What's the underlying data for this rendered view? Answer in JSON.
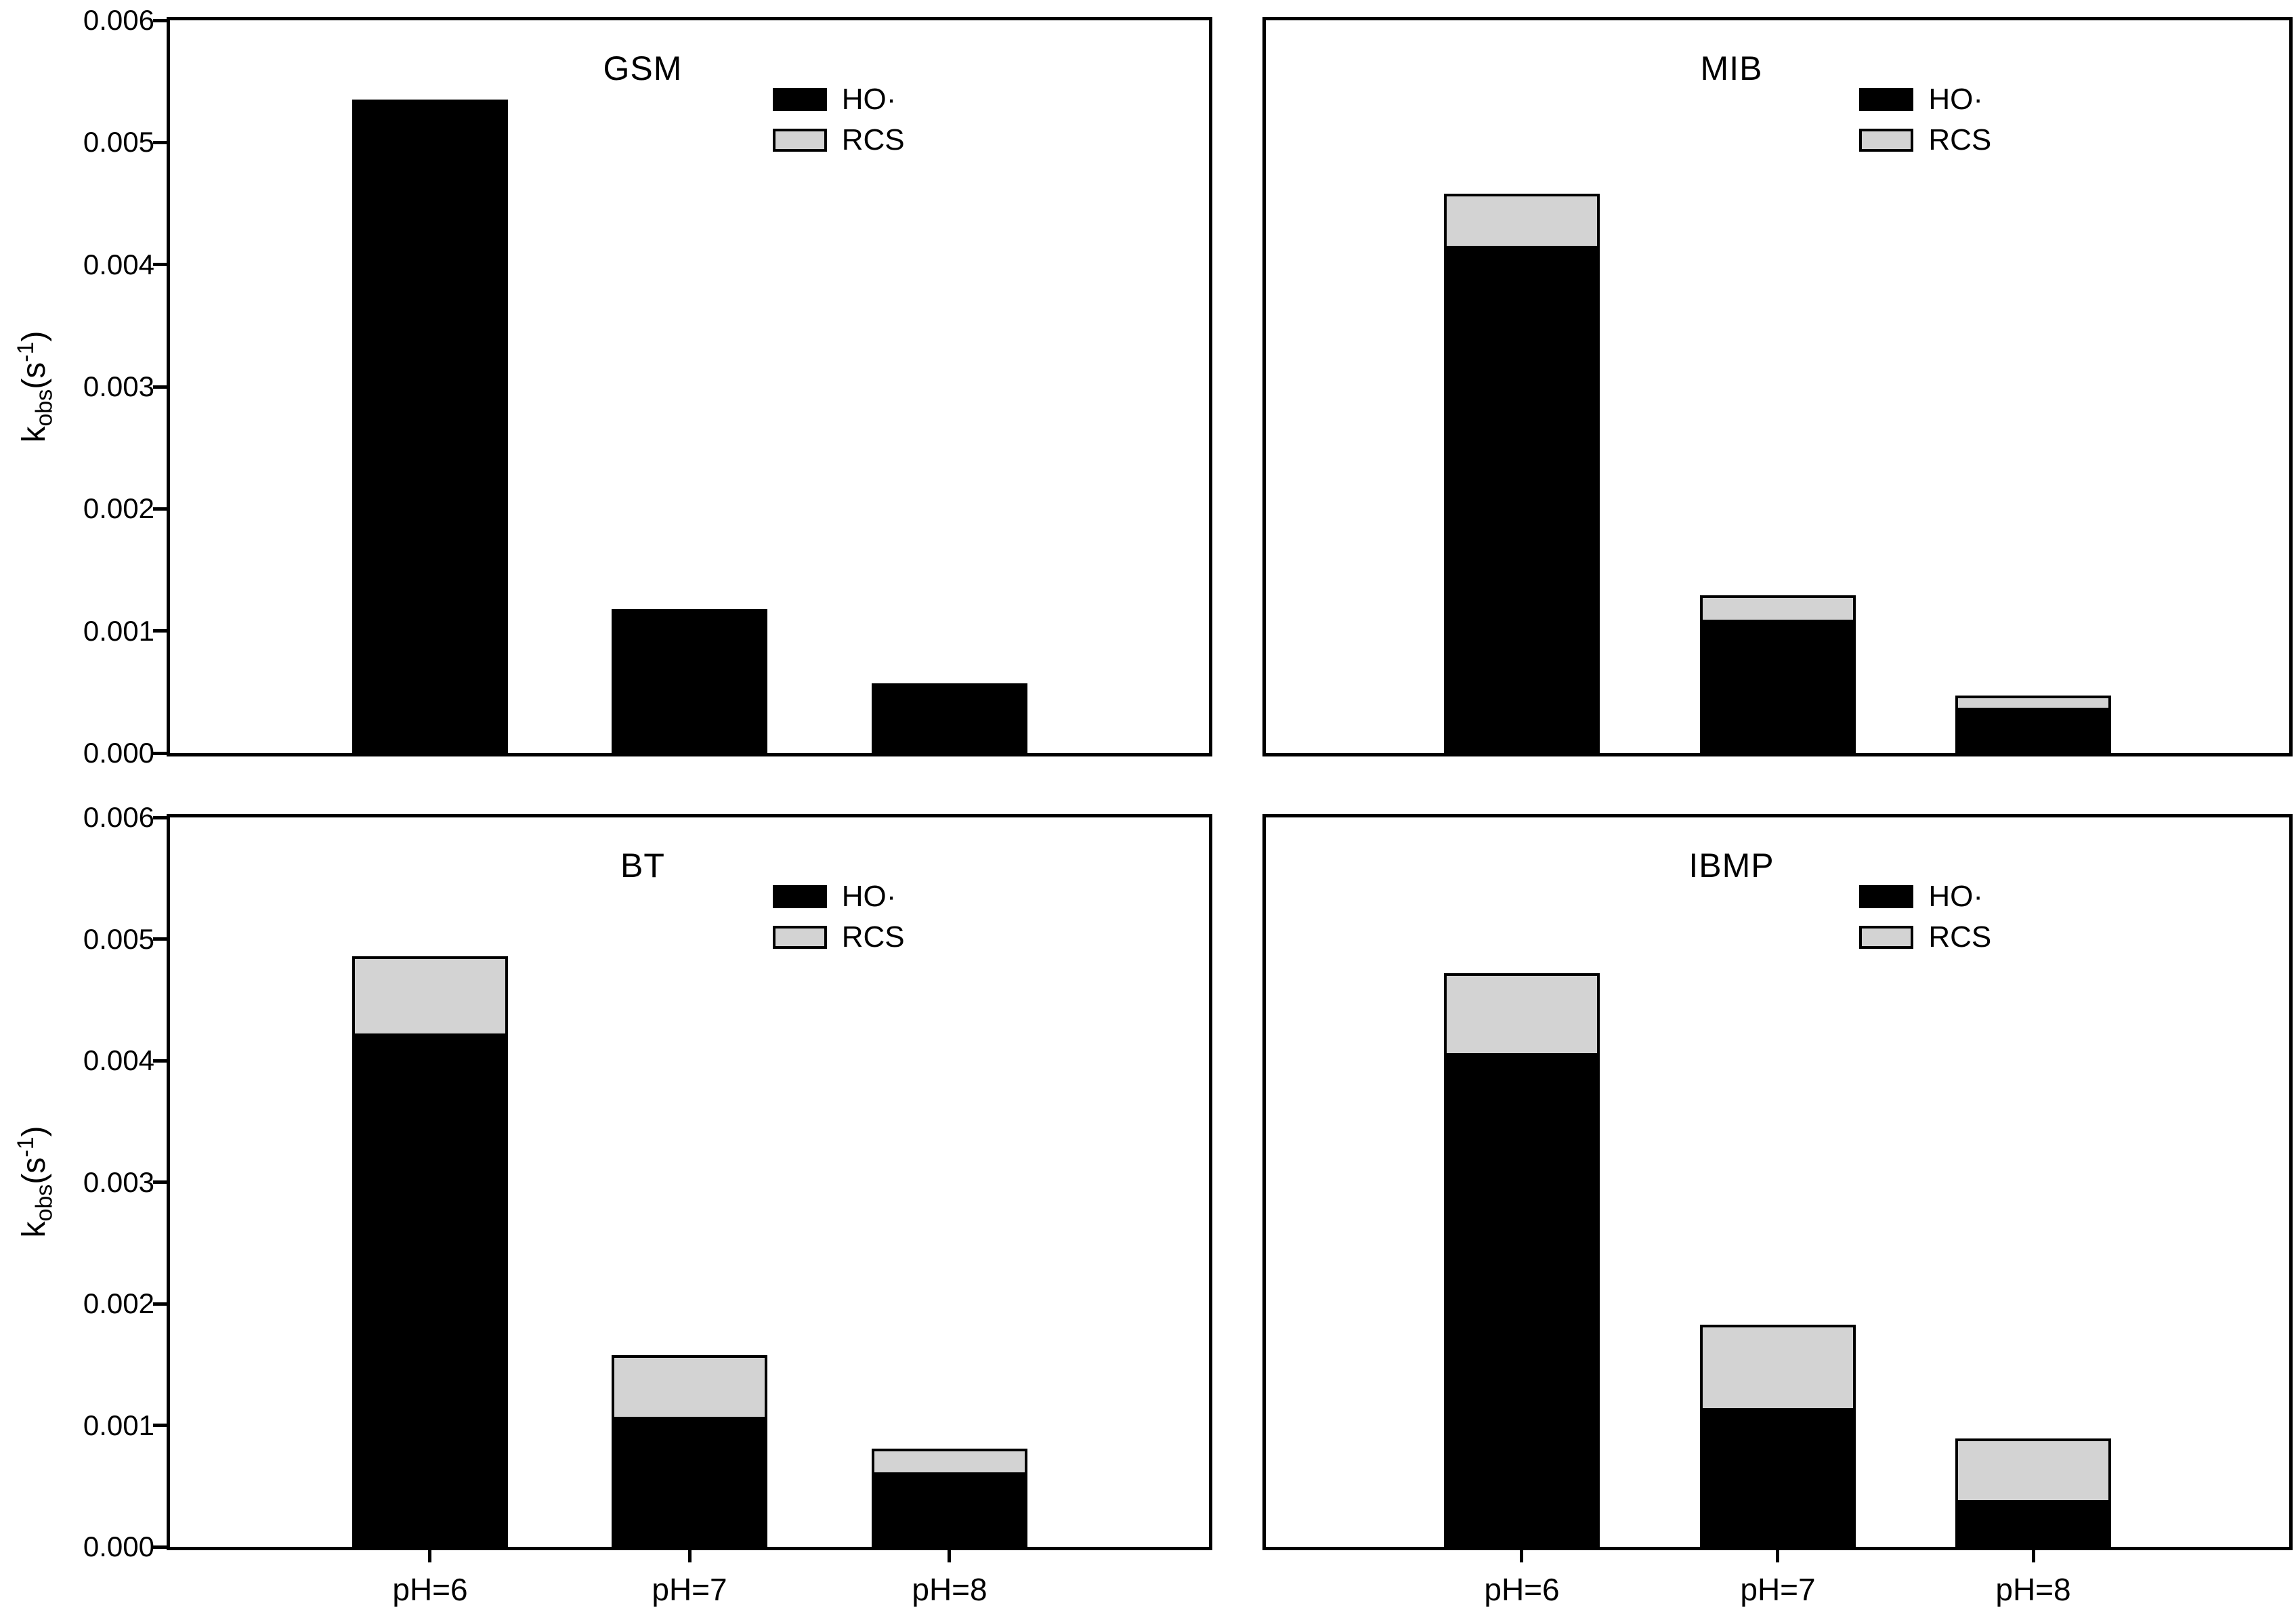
{
  "figure": {
    "background": "#ffffff",
    "ylabel": {
      "base": "k",
      "sub": "obs",
      "mid": "(s",
      "sup": "-1",
      "end": ")"
    },
    "legend": {
      "ho_label": "HO·",
      "rcs_label": "RCS"
    },
    "colors": {
      "ho": "#000000",
      "rcs": "#d3d3d3",
      "axis": "#000000"
    },
    "yticks": [
      "0.000",
      "0.001",
      "0.002",
      "0.003",
      "0.004",
      "0.005",
      "0.006"
    ]
  },
  "chart_data": [
    {
      "type": "bar",
      "stacked": true,
      "title": "GSM",
      "position": "top-left",
      "categories": [
        "pH=6",
        "pH=7",
        "pH=8"
      ],
      "series": [
        {
          "name": "HO·",
          "color": "#000000",
          "values": [
            0.00535,
            0.00118,
            0.00057
          ]
        },
        {
          "name": "RCS",
          "color": "#d3d3d3",
          "values": [
            0.0,
            0.0,
            0.0
          ]
        }
      ],
      "totals": [
        0.00535,
        0.00118,
        0.00057
      ],
      "xlabel": "",
      "ylabel": "k_obs(s^-1)",
      "ylim": [
        0,
        0.006
      ],
      "grid": false,
      "legend_position": "upper-right-inside",
      "show_ytick_labels": true,
      "show_xtick_labels": false
    },
    {
      "type": "bar",
      "stacked": true,
      "title": "MIB",
      "position": "top-right",
      "categories": [
        "pH=6",
        "pH=7",
        "pH=8"
      ],
      "series": [
        {
          "name": "HO·",
          "color": "#000000",
          "values": [
            0.00413,
            0.00107,
            0.00035
          ]
        },
        {
          "name": "RCS",
          "color": "#d3d3d3",
          "values": [
            0.00045,
            0.00022,
            0.00012
          ]
        }
      ],
      "totals": [
        0.00458,
        0.00129,
        0.00047
      ],
      "xlabel": "",
      "ylabel": "",
      "ylim": [
        0,
        0.006
      ],
      "grid": false,
      "legend_position": "upper-right-inside",
      "show_ytick_labels": false,
      "show_xtick_labels": false
    },
    {
      "type": "bar",
      "stacked": true,
      "title": "BT",
      "position": "bottom-left",
      "categories": [
        "pH=6",
        "pH=7",
        "pH=8"
      ],
      "series": [
        {
          "name": "HO·",
          "color": "#000000",
          "values": [
            0.0042,
            0.00105,
            0.00059
          ]
        },
        {
          "name": "RCS",
          "color": "#d3d3d3",
          "values": [
            0.00066,
            0.00053,
            0.00022
          ]
        }
      ],
      "totals": [
        0.00486,
        0.00158,
        0.00081
      ],
      "xlabel": "",
      "ylabel": "k_obs(s^-1)",
      "ylim": [
        0,
        0.006
      ],
      "grid": false,
      "legend_position": "upper-right-inside",
      "show_ytick_labels": true,
      "show_xtick_labels": true
    },
    {
      "type": "bar",
      "stacked": true,
      "title": "IBMP",
      "position": "bottom-right",
      "categories": [
        "pH=6",
        "pH=7",
        "pH=8"
      ],
      "series": [
        {
          "name": "HO·",
          "color": "#000000",
          "values": [
            0.00404,
            0.00112,
            0.00036
          ]
        },
        {
          "name": "RCS",
          "color": "#d3d3d3",
          "values": [
            0.00068,
            0.00071,
            0.00053
          ]
        }
      ],
      "totals": [
        0.00472,
        0.00183,
        0.00089
      ],
      "xlabel": "",
      "ylabel": "",
      "ylim": [
        0,
        0.006
      ],
      "grid": false,
      "legend_position": "upper-right-inside",
      "show_ytick_labels": false,
      "show_xtick_labels": true
    }
  ]
}
